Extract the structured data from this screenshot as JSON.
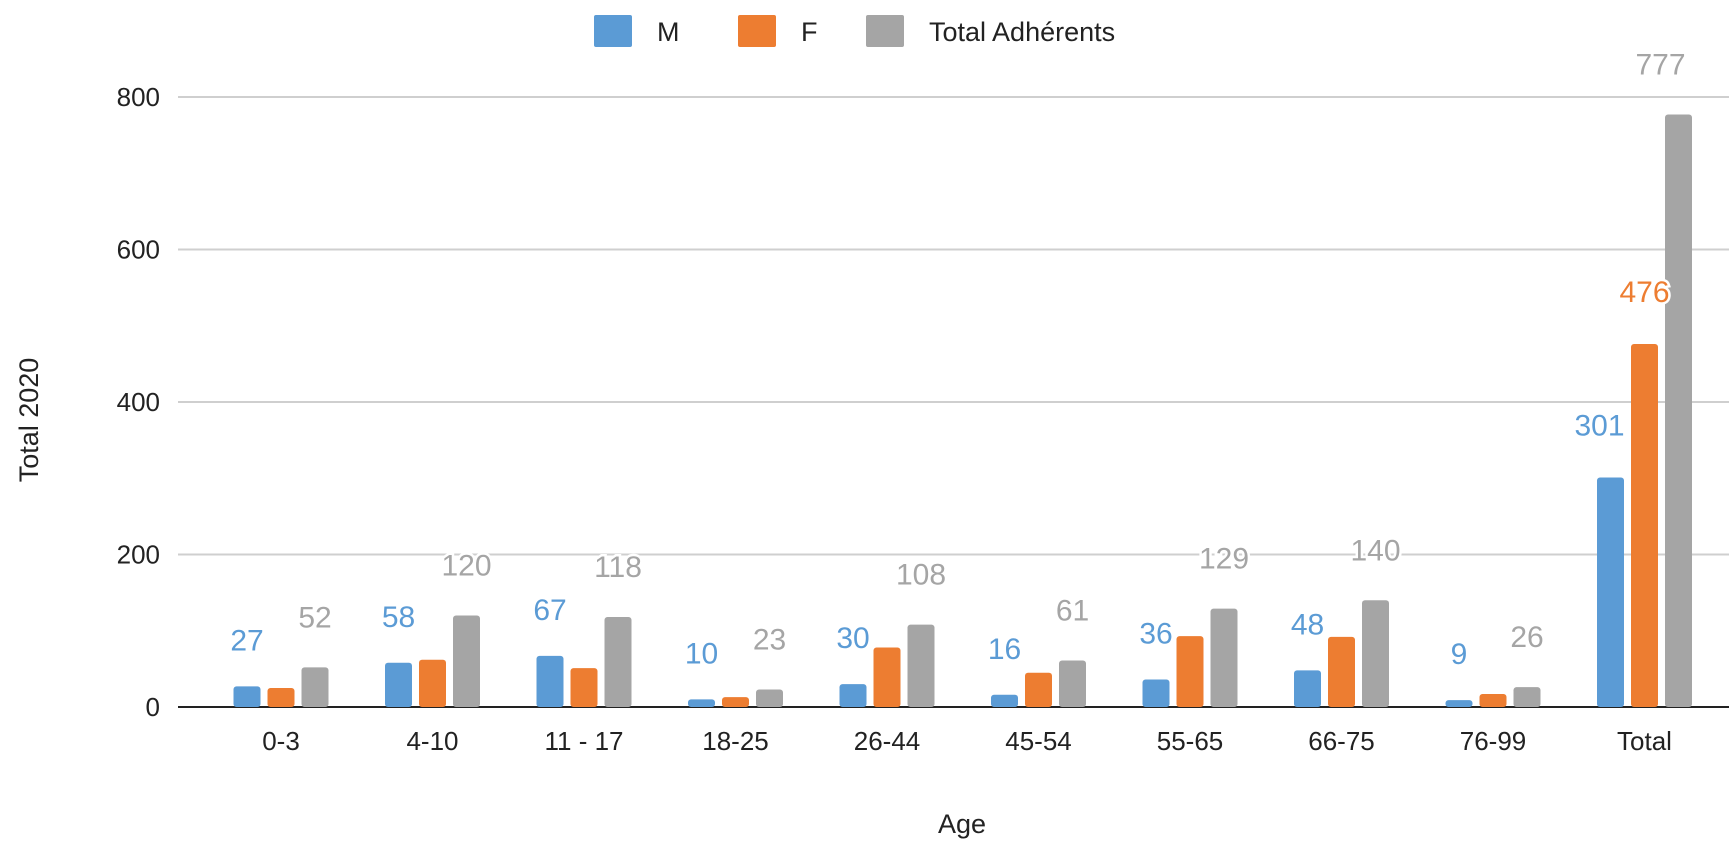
{
  "chart_data": {
    "type": "bar",
    "title": "",
    "xlabel": "Age",
    "ylabel": "Total 2020",
    "ylim": [
      0,
      800
    ],
    "yticks": [
      0,
      200,
      400,
      600,
      800
    ],
    "grid": true,
    "legend_position": "top-center",
    "categories": [
      "0-3",
      "4-10",
      "11 - 17",
      "18-25",
      "26-44",
      "45-54",
      "55-65",
      "66-75",
      "76-99",
      "Total"
    ],
    "series": [
      {
        "name": "M",
        "color": "#5b9bd5",
        "values": [
          27,
          58,
          67,
          10,
          30,
          16,
          36,
          48,
          9,
          301
        ],
        "labels": [
          "27",
          "58",
          "67",
          "10",
          "30",
          "16",
          "36",
          "48",
          "9",
          "301"
        ]
      },
      {
        "name": "F",
        "color": "#ed7d31",
        "values": [
          25,
          62,
          51,
          13,
          78,
          45,
          93,
          92,
          17,
          476
        ],
        "labels": [
          "",
          "",
          "",
          "",
          "",
          "",
          "",
          "",
          "",
          "476"
        ]
      },
      {
        "name": "Total Adhérents",
        "color": "#a5a5a5",
        "values": [
          52,
          120,
          118,
          23,
          108,
          61,
          129,
          140,
          26,
          777
        ],
        "labels": [
          "52",
          "120",
          "118",
          "23",
          "108",
          "61",
          "129",
          "140",
          "26",
          "777"
        ]
      }
    ]
  }
}
